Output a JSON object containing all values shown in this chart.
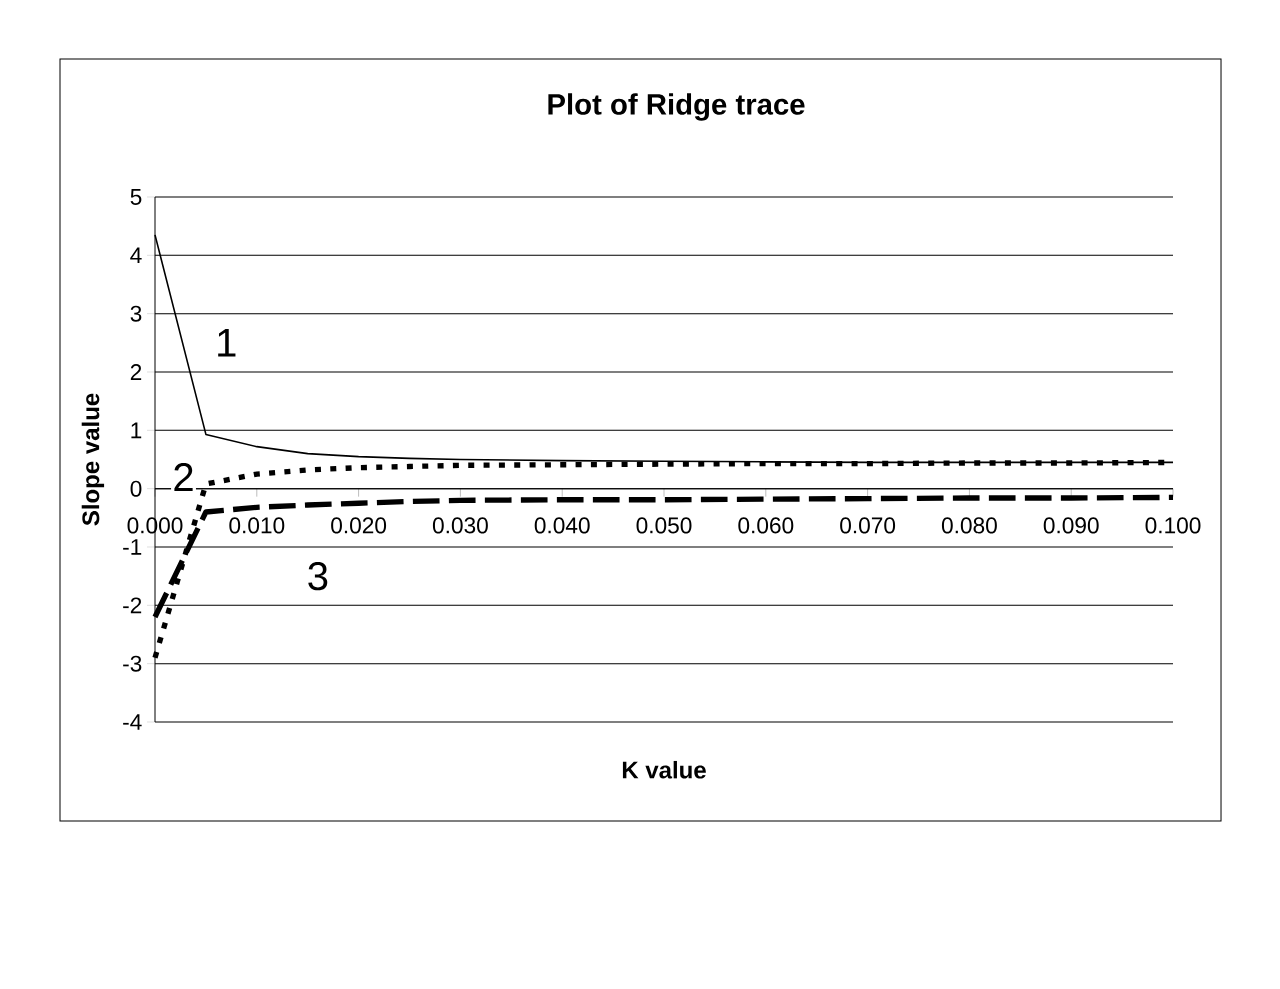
{
  "chart_data": {
    "type": "line",
    "title": "Plot of Ridge trace",
    "xlabel": "K value",
    "ylabel": "Slope value",
    "x": [
      0,
      0.005,
      0.01,
      0.015,
      0.02,
      0.025,
      0.03,
      0.04,
      0.05,
      0.06,
      0.07,
      0.08,
      0.09,
      0.1
    ],
    "series": [
      {
        "color": "#000000",
        "line_style": "solid",
        "values": [
          4.35,
          0.93,
          0.72,
          0.6,
          0.55,
          0.52,
          0.5,
          0.48,
          0.47,
          0.46,
          0.45,
          0.45,
          0.45,
          0.45
        ]
      },
      {
        "color": "#000000",
        "line_style": "dotted",
        "values": [
          -2.9,
          0.08,
          0.25,
          0.32,
          0.36,
          0.38,
          0.4,
          0.41,
          0.42,
          0.43,
          0.43,
          0.44,
          0.44,
          0.45
        ]
      },
      {
        "color": "#000000",
        "line_style": "dashed",
        "values": [
          -2.2,
          -0.4,
          -0.32,
          -0.28,
          -0.25,
          -0.22,
          -0.2,
          -0.19,
          -0.19,
          -0.18,
          -0.17,
          -0.16,
          -0.16,
          -0.15
        ]
      }
    ],
    "xlim": [
      0,
      0.1
    ],
    "xticks": [
      {
        "value": 0,
        "label": "0.000"
      },
      {
        "value": 0.01,
        "label": "0.010"
      },
      {
        "value": 0.02,
        "label": "0.020"
      },
      {
        "value": 0.03,
        "label": "0.030"
      },
      {
        "value": 0.04,
        "label": "0.040"
      },
      {
        "value": 0.05,
        "label": "0.050"
      },
      {
        "value": 0.06,
        "label": "0.060"
      },
      {
        "value": 0.07,
        "label": "0.070"
      },
      {
        "value": 0.08,
        "label": "0.080"
      },
      {
        "value": 0.09,
        "label": "0.090"
      },
      {
        "value": 0.1,
        "label": "0.100"
      }
    ],
    "ylim": [
      -4,
      5
    ],
    "yticks": [
      -4,
      -3,
      -2,
      -1,
      0,
      1,
      2,
      3,
      4,
      5
    ],
    "grid": "y",
    "marker": "none",
    "annotations": [
      {
        "text": "1",
        "x": 0.007,
        "y": 2.5
      },
      {
        "text": "2",
        "x": 0.0028,
        "y": 0.2
      },
      {
        "text": "3",
        "x": 0.016,
        "y": -1.5
      }
    ]
  }
}
